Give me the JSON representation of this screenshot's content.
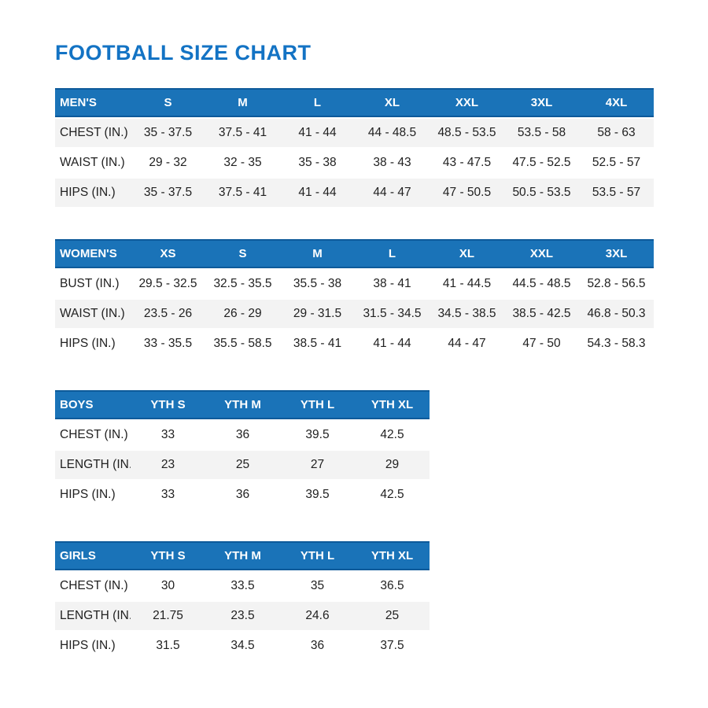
{
  "page": {
    "title": "FOOTBALL SIZE CHART",
    "colors": {
      "accent_blue": "#1373c4",
      "header_blue": "#1a73b8",
      "header_edge_blue": "#0d5a9a",
      "shaded_row_gray": "#f3f3f3",
      "body_text": "#212121"
    }
  },
  "tables": [
    {
      "id": "mens",
      "header": [
        "MEN'S",
        "S",
        "M",
        "L",
        "XL",
        "XXL",
        "3XL",
        "4XL"
      ],
      "rows": [
        {
          "label": "CHEST (IN.)",
          "shaded": true,
          "values": [
            "35 - 37.5",
            "37.5 - 41",
            "41 - 44",
            "44 - 48.5",
            "48.5 - 53.5",
            "53.5 - 58",
            "58 - 63"
          ]
        },
        {
          "label": "WAIST (IN.)",
          "shaded": false,
          "values": [
            "29 - 32",
            "32 - 35",
            "35 - 38",
            "38 - 43",
            "43 - 47.5",
            "47.5 - 52.5",
            "52.5 - 57"
          ]
        },
        {
          "label": "HIPS (IN.)",
          "shaded": true,
          "values": [
            "35 - 37.5",
            "37.5 - 41",
            "41 - 44",
            "44 - 47",
            "47 - 50.5",
            "50.5 - 53.5",
            "53.5 - 57"
          ]
        }
      ]
    },
    {
      "id": "womens",
      "header": [
        "WOMEN'S",
        "XS",
        "S",
        "M",
        "L",
        "XL",
        "XXL",
        "3XL"
      ],
      "rows": [
        {
          "label": "BUST (IN.)",
          "shaded": false,
          "values": [
            "29.5 - 32.5",
            "32.5 - 35.5",
            "35.5 - 38",
            "38 - 41",
            "41 - 44.5",
            "44.5 - 48.5",
            "52.8 - 56.5"
          ]
        },
        {
          "label": "WAIST (IN.)",
          "shaded": true,
          "values": [
            "23.5 - 26",
            "26 - 29",
            "29 - 31.5",
            "31.5 - 34.5",
            "34.5 - 38.5",
            "38.5 - 42.5",
            "46.8 - 50.3"
          ]
        },
        {
          "label": "HIPS (IN.)",
          "shaded": false,
          "values": [
            "33 - 35.5",
            "35.5 - 58.5",
            "38.5 - 41",
            "41 - 44",
            "44 - 47",
            "47 - 50",
            "54.3 - 58.3"
          ]
        }
      ]
    },
    {
      "id": "boys",
      "header": [
        "BOYS",
        "YTH S",
        "YTH M",
        "YTH L",
        "YTH XL"
      ],
      "rows": [
        {
          "label": "CHEST (IN.)",
          "shaded": false,
          "values": [
            "33",
            "36",
            "39.5",
            "42.5"
          ]
        },
        {
          "label": "LENGTH (IN.)",
          "shaded": true,
          "values": [
            "23",
            "25",
            "27",
            "29"
          ]
        },
        {
          "label": "HIPS (IN.)",
          "shaded": false,
          "values": [
            "33",
            "36",
            "39.5",
            "42.5"
          ]
        }
      ]
    },
    {
      "id": "girls",
      "header": [
        "GIRLS",
        "YTH S",
        "YTH M",
        "YTH L",
        "YTH XL"
      ],
      "rows": [
        {
          "label": "CHEST (IN.)",
          "shaded": false,
          "values": [
            "30",
            "33.5",
            "35",
            "36.5"
          ]
        },
        {
          "label": "LENGTH (IN.)",
          "shaded": true,
          "values": [
            "21.75",
            "23.5",
            "24.6",
            "25"
          ]
        },
        {
          "label": "HIPS (IN.)",
          "shaded": false,
          "values": [
            "31.5",
            "34.5",
            "36",
            "37.5"
          ]
        }
      ]
    }
  ]
}
